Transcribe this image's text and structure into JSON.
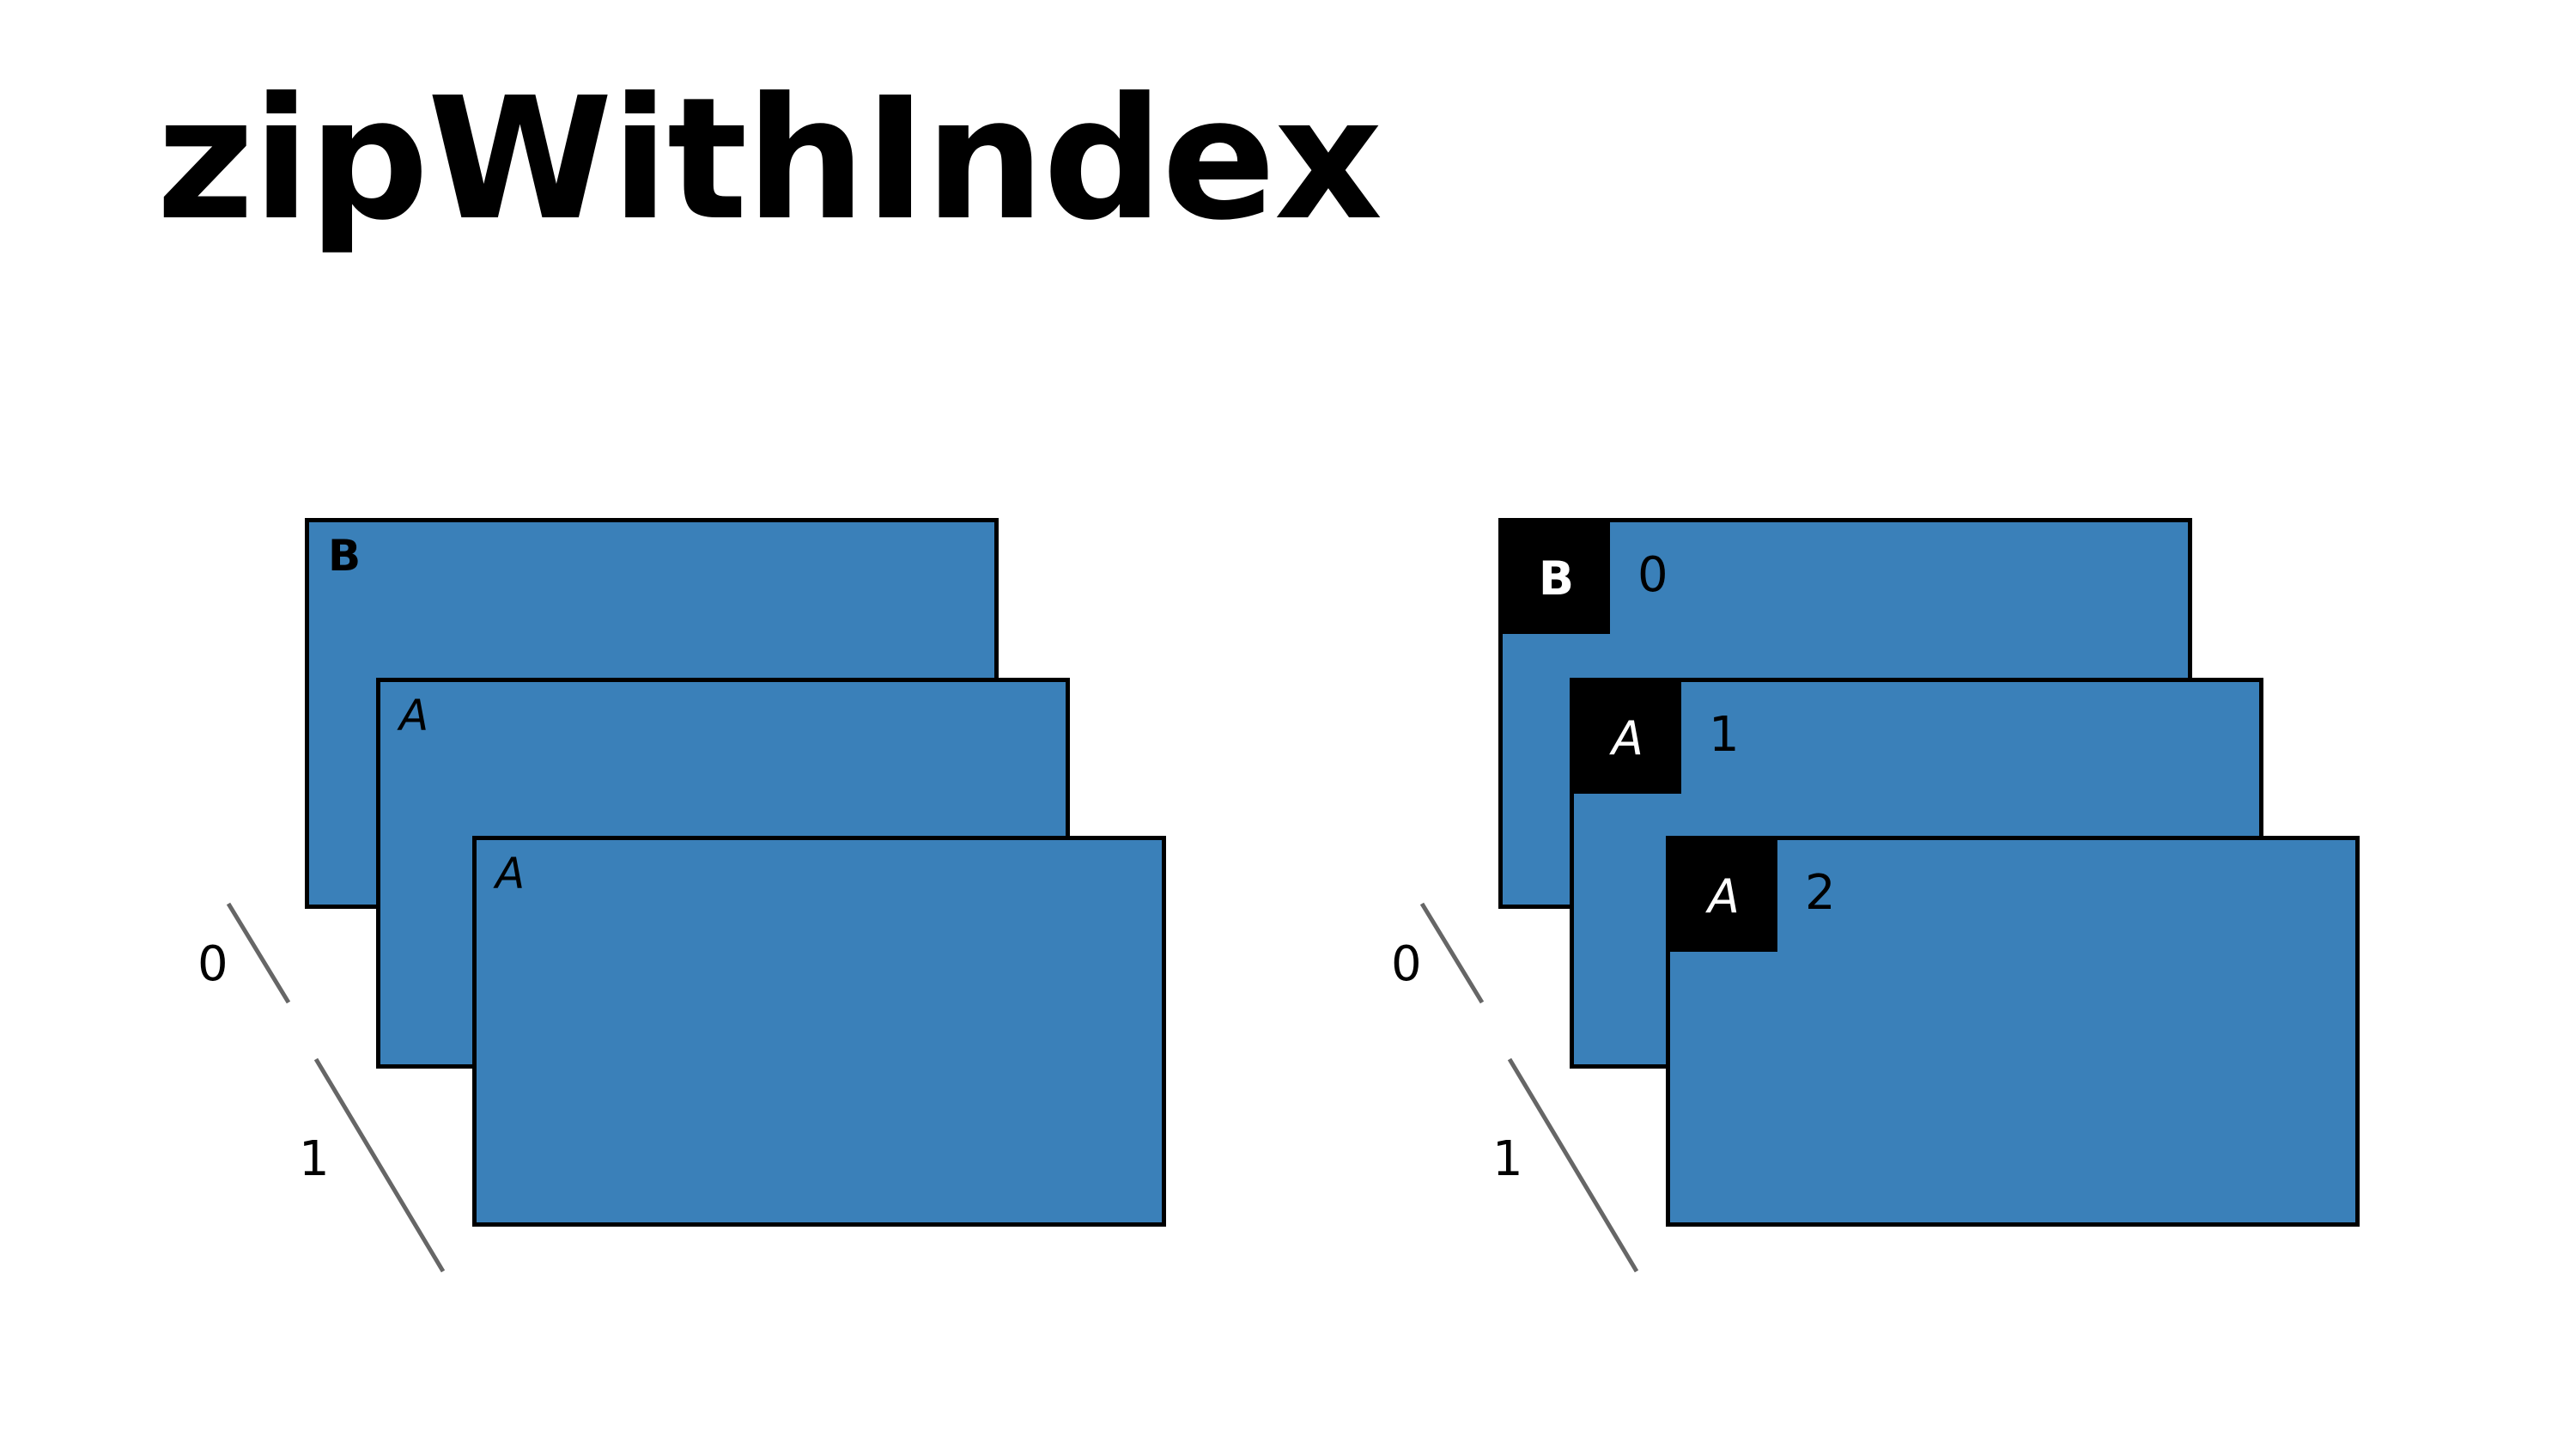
{
  "title": "zipWithIndex",
  "colors": {
    "card_fill": "#3a80b9",
    "card_border": "#000000",
    "tag_fill": "#000000",
    "tag_text": "#ffffff",
    "axis_line": "#666666",
    "background": "#ffffff"
  },
  "left_panel": {
    "cards": [
      {
        "label": "B"
      },
      {
        "label": "A"
      },
      {
        "label": "A"
      }
    ],
    "axis_labels": [
      "0",
      "1"
    ]
  },
  "right_panel": {
    "cards": [
      {
        "label": "B",
        "index": "0"
      },
      {
        "label": "A",
        "index": "1"
      },
      {
        "label": "A",
        "index": "2"
      }
    ],
    "axis_labels": [
      "0",
      "1"
    ]
  }
}
